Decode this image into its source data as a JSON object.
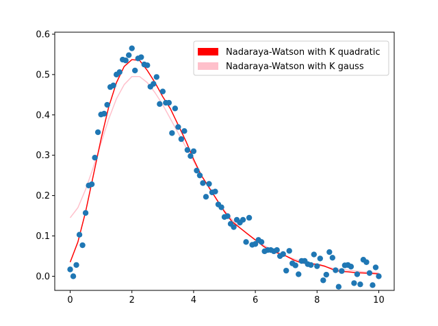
{
  "chart_data": {
    "type": "scatter",
    "title": "",
    "xlabel": "",
    "ylabel": "",
    "xlim": [
      -0.5,
      10.5
    ],
    "ylim": [
      -0.035,
      0.605
    ],
    "x_ticks": [
      0,
      2,
      4,
      6,
      8,
      10
    ],
    "y_ticks": [
      0.0,
      0.1,
      0.2,
      0.3,
      0.4,
      0.5,
      0.6
    ],
    "x_tick_labels": [
      "0",
      "2",
      "4",
      "6",
      "8",
      "10"
    ],
    "y_tick_labels": [
      "0.0",
      "0.1",
      "0.2",
      "0.3",
      "0.4",
      "0.5",
      "0.6"
    ],
    "grid": false,
    "legend_position": "top-right",
    "colors": {
      "points": "#1f77b4",
      "quadratic": "#ff0000",
      "gauss": "#ffc0cb"
    },
    "scatter": {
      "x": [
        0.0,
        0.1,
        0.2,
        0.3,
        0.4,
        0.5,
        0.6,
        0.7,
        0.8,
        0.9,
        1.0,
        1.1,
        1.2,
        1.3,
        1.4,
        1.5,
        1.6,
        1.7,
        1.8,
        1.9,
        2.0,
        2.1,
        2.2,
        2.3,
        2.4,
        2.5,
        2.6,
        2.7,
        2.8,
        2.9,
        3.0,
        3.1,
        3.2,
        3.3,
        3.4,
        3.5,
        3.6,
        3.7,
        3.8,
        3.9,
        4.0,
        4.1,
        4.2,
        4.3,
        4.4,
        4.5,
        4.6,
        4.7,
        4.8,
        4.9,
        5.0,
        5.1,
        5.2,
        5.3,
        5.4,
        5.5,
        5.6,
        5.7,
        5.8,
        5.9,
        6.0,
        6.1,
        6.2,
        6.3,
        6.4,
        6.5,
        6.6,
        6.7,
        6.8,
        6.9,
        7.0,
        7.1,
        7.2,
        7.3,
        7.4,
        7.5,
        7.6,
        7.7,
        7.8,
        7.9,
        8.0,
        8.1,
        8.2,
        8.3,
        8.4,
        8.5,
        8.6,
        8.7,
        8.8,
        8.9,
        9.0,
        9.1,
        9.2,
        9.3,
        9.4,
        9.5,
        9.6,
        9.7,
        9.8,
        9.9,
        10.0
      ],
      "y": [
        0.017,
        0.0,
        0.028,
        0.103,
        0.077,
        0.157,
        0.225,
        0.228,
        0.294,
        0.357,
        0.401,
        0.403,
        0.425,
        0.469,
        0.473,
        0.5,
        0.506,
        0.537,
        0.535,
        0.548,
        0.565,
        0.51,
        0.54,
        0.543,
        0.525,
        0.523,
        0.47,
        0.477,
        0.494,
        0.427,
        0.458,
        0.43,
        0.43,
        0.355,
        0.416,
        0.37,
        0.34,
        0.36,
        0.313,
        0.298,
        0.31,
        0.262,
        0.25,
        0.231,
        0.197,
        0.229,
        0.208,
        0.21,
        0.178,
        0.171,
        0.147,
        0.149,
        0.13,
        0.122,
        0.14,
        0.133,
        0.14,
        0.085,
        0.145,
        0.078,
        0.08,
        0.09,
        0.085,
        0.062,
        0.065,
        0.065,
        0.062,
        0.065,
        0.05,
        0.055,
        0.014,
        0.063,
        0.032,
        0.027,
        0.005,
        0.038,
        0.038,
        0.03,
        0.028,
        0.054,
        0.025,
        0.044,
        -0.01,
        0.004,
        0.06,
        0.046,
        0.015,
        -0.026,
        0.013,
        0.027,
        0.028,
        0.024,
        -0.017,
        0.005,
        -0.02,
        0.041,
        0.035,
        0.008,
        -0.022,
        0.022,
        0.0
      ]
    },
    "series": [
      {
        "name": "Nadaraya-Watson with K quadratic",
        "x": [
          0.0,
          0.25,
          0.5,
          0.75,
          1.0,
          1.25,
          1.5,
          1.75,
          2.0,
          2.25,
          2.5,
          2.75,
          3.0,
          3.25,
          3.5,
          3.75,
          4.0,
          4.25,
          4.5,
          4.75,
          5.0,
          5.25,
          5.5,
          5.75,
          6.0,
          6.25,
          6.5,
          6.75,
          7.0,
          7.25,
          7.5,
          7.75,
          8.0,
          8.25,
          8.5,
          8.75,
          9.0,
          9.25,
          9.5,
          9.75,
          10.0
        ],
        "y": [
          0.035,
          0.085,
          0.16,
          0.25,
          0.34,
          0.42,
          0.48,
          0.52,
          0.537,
          0.535,
          0.51,
          0.48,
          0.445,
          0.415,
          0.375,
          0.335,
          0.29,
          0.25,
          0.22,
          0.19,
          0.16,
          0.135,
          0.12,
          0.105,
          0.09,
          0.075,
          0.063,
          0.057,
          0.05,
          0.04,
          0.033,
          0.031,
          0.03,
          0.025,
          0.017,
          0.012,
          0.011,
          0.009,
          0.008,
          0.007,
          0.006
        ]
      },
      {
        "name": "Nadaraya-Watson with K gauss",
        "x": [
          0.0,
          0.25,
          0.5,
          0.75,
          1.0,
          1.25,
          1.5,
          1.75,
          2.0,
          2.25,
          2.5,
          2.75,
          3.0,
          3.25,
          3.5,
          3.75,
          4.0,
          4.25,
          4.5,
          4.75,
          5.0,
          5.25,
          5.5,
          5.75,
          6.0,
          6.25,
          6.5,
          6.75,
          7.0,
          7.25,
          7.5,
          7.75,
          8.0,
          8.25,
          8.5,
          8.75,
          9.0,
          9.25,
          9.5,
          9.75,
          10.0
        ],
        "y": [
          0.145,
          0.17,
          0.215,
          0.27,
          0.33,
          0.39,
          0.44,
          0.475,
          0.495,
          0.495,
          0.48,
          0.455,
          0.425,
          0.39,
          0.355,
          0.32,
          0.285,
          0.25,
          0.22,
          0.19,
          0.163,
          0.14,
          0.12,
          0.104,
          0.09,
          0.078,
          0.067,
          0.058,
          0.05,
          0.043,
          0.037,
          0.032,
          0.028,
          0.024,
          0.02,
          0.017,
          0.015,
          0.013,
          0.011,
          0.01,
          0.009
        ]
      }
    ]
  }
}
